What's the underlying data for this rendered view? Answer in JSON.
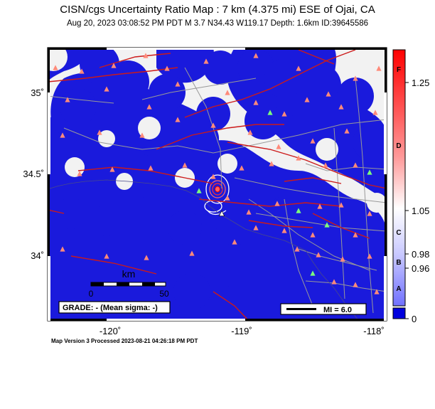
{
  "header": {
    "title": "CISN/cgs Uncertainty Ratio Map : 7  km (4.375 mi) ESE of Ojai, CA",
    "subtitle": "Aug 20, 2023 03:08:52 PM PDT   M 3.7   N34.43 W119.17   Depth: 1.6km   ID:39645586"
  },
  "axes": {
    "lat_ticks": [
      "35˚",
      "34.5˚",
      "34˚"
    ],
    "lon_ticks": [
      "-120˚",
      "-119˚",
      "-118˚"
    ]
  },
  "scale_bar": {
    "unit": "km",
    "min_label": "0",
    "max_label": "50"
  },
  "grade_box": {
    "text": "GRADE: - (Mean sigma: -)"
  },
  "legend": {
    "mi_label": "MI = 6.0"
  },
  "colorbar": {
    "values": [
      "1.25",
      "1.05",
      "0.98",
      "0.96",
      "0"
    ],
    "grades": [
      "F",
      "D",
      "C",
      "B",
      "A"
    ],
    "colors": {
      "top": "#ff0000",
      "mid": "#ffffff",
      "bottom": "#0000dd"
    }
  },
  "footer": {
    "text": "Map Version 3 Processed 2023-08-21 04:26:18 PM PDT"
  },
  "colors": {
    "ocean": "#7d9fdb",
    "land": "#f2f2f2",
    "coverage": "#1a1adc",
    "fault": "#cc1a1a",
    "road": "#999999",
    "station": "#ff8a7a",
    "station_green": "#7cff7c"
  }
}
